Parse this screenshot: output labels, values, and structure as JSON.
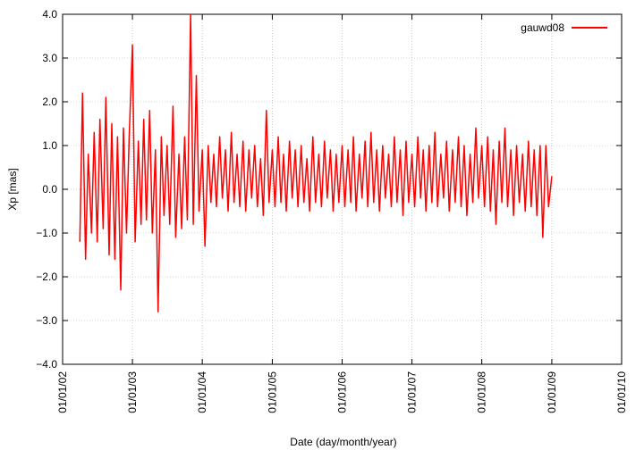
{
  "chart_data": {
    "type": "line",
    "xlabel": "Date (day/month/year)",
    "ylabel": "Xp [mas]",
    "x": [
      "2002-04-01",
      "2002-04-15",
      "2002-05-01",
      "2002-05-15",
      "2002-06-01",
      "2002-06-15",
      "2002-07-01",
      "2002-07-15",
      "2002-08-01",
      "2002-08-15",
      "2002-09-01",
      "2002-09-15",
      "2002-10-01",
      "2002-10-15",
      "2002-11-01",
      "2002-11-15",
      "2002-12-01",
      "2002-12-15",
      "2003-01-01",
      "2003-01-15",
      "2003-02-01",
      "2003-02-15",
      "2003-03-01",
      "2003-03-15",
      "2003-04-01",
      "2003-04-15",
      "2003-05-01",
      "2003-05-15",
      "2003-06-01",
      "2003-06-15",
      "2003-07-01",
      "2003-07-15",
      "2003-08-01",
      "2003-08-15",
      "2003-09-01",
      "2003-09-15",
      "2003-10-01",
      "2003-10-15",
      "2003-11-01",
      "2003-11-15",
      "2003-12-01",
      "2003-12-15",
      "2004-01-01",
      "2004-01-15",
      "2004-02-01",
      "2004-02-15",
      "2004-03-01",
      "2004-03-15",
      "2004-04-01",
      "2004-04-15",
      "2004-05-01",
      "2004-05-15",
      "2004-06-01",
      "2004-06-15",
      "2004-07-01",
      "2004-07-15",
      "2004-08-01",
      "2004-08-15",
      "2004-09-01",
      "2004-09-15",
      "2004-10-01",
      "2004-10-15",
      "2004-11-01",
      "2004-11-15",
      "2004-12-01",
      "2004-12-15",
      "2005-01-01",
      "2005-01-15",
      "2005-02-01",
      "2005-02-15",
      "2005-03-01",
      "2005-03-15",
      "2005-04-01",
      "2005-04-15",
      "2005-05-01",
      "2005-05-15",
      "2005-06-01",
      "2005-06-15",
      "2005-07-01",
      "2005-07-15",
      "2005-08-01",
      "2005-08-15",
      "2005-09-01",
      "2005-09-15",
      "2005-10-01",
      "2005-10-15",
      "2005-11-01",
      "2005-11-15",
      "2005-12-01",
      "2005-12-15",
      "2006-01-01",
      "2006-01-15",
      "2006-02-01",
      "2006-02-15",
      "2006-03-01",
      "2006-03-15",
      "2006-04-01",
      "2006-04-15",
      "2006-05-01",
      "2006-05-15",
      "2006-06-01",
      "2006-06-15",
      "2006-07-01",
      "2006-07-15",
      "2006-08-01",
      "2006-08-15",
      "2006-09-01",
      "2006-09-15",
      "2006-10-01",
      "2006-10-15",
      "2006-11-01",
      "2006-11-15",
      "2006-12-01",
      "2006-12-15",
      "2007-01-01",
      "2007-01-15",
      "2007-02-01",
      "2007-02-15",
      "2007-03-01",
      "2007-03-15",
      "2007-04-01",
      "2007-04-15",
      "2007-05-01",
      "2007-05-15",
      "2007-06-01",
      "2007-06-15",
      "2007-07-01",
      "2007-07-15",
      "2007-08-01",
      "2007-08-15",
      "2007-09-01",
      "2007-09-15",
      "2007-10-01",
      "2007-10-15",
      "2007-11-01",
      "2007-11-15",
      "2007-12-01",
      "2007-12-15",
      "2008-01-01",
      "2008-01-15",
      "2008-02-01",
      "2008-02-15",
      "2008-03-01",
      "2008-03-15",
      "2008-04-01",
      "2008-04-15",
      "2008-05-01",
      "2008-05-15",
      "2008-06-01",
      "2008-06-15",
      "2008-07-01",
      "2008-07-15",
      "2008-08-01",
      "2008-08-15",
      "2008-09-01",
      "2008-09-15",
      "2008-10-01",
      "2008-10-15",
      "2008-11-01",
      "2008-11-15",
      "2008-12-01",
      "2008-12-15",
      "2009-01-01"
    ],
    "series": [
      {
        "name": "gauwd08",
        "color": "#ff0000",
        "values": [
          -1.2,
          2.2,
          -1.6,
          0.8,
          -1.0,
          1.3,
          -1.2,
          1.6,
          -0.9,
          2.1,
          -1.5,
          1.5,
          -1.6,
          1.2,
          -2.3,
          1.4,
          -1.0,
          1.2,
          3.3,
          -1.2,
          1.1,
          -0.8,
          1.6,
          -0.7,
          1.8,
          -1.0,
          0.9,
          -2.8,
          1.2,
          -0.6,
          1.0,
          -0.8,
          1.9,
          -1.1,
          0.8,
          -0.9,
          1.2,
          -0.7,
          4.0,
          -0.8,
          2.6,
          -0.5,
          0.9,
          -1.3,
          1.0,
          -0.3,
          0.8,
          -0.4,
          1.2,
          -0.2,
          0.9,
          -0.5,
          1.3,
          -0.3,
          0.8,
          -0.4,
          1.1,
          -0.5,
          0.9,
          -0.2,
          1.0,
          -0.4,
          0.7,
          -0.6,
          1.8,
          -0.3,
          0.9,
          -0.4,
          1.2,
          -0.3,
          0.8,
          -0.5,
          1.1,
          -0.2,
          0.9,
          -0.4,
          1.0,
          -0.3,
          0.7,
          -0.5,
          1.2,
          -0.3,
          0.8,
          -0.4,
          1.1,
          -0.2,
          0.9,
          -0.5,
          0.8,
          -0.3,
          1.0,
          -0.4,
          0.9,
          -0.3,
          1.2,
          -0.5,
          0.8,
          -0.2,
          1.1,
          -0.4,
          1.3,
          -0.3,
          0.9,
          -0.5,
          1.0,
          -0.2,
          0.8,
          -0.4,
          1.2,
          -0.3,
          0.9,
          -0.6,
          1.1,
          -0.3,
          0.8,
          -0.4,
          1.2,
          -0.2,
          0.9,
          -0.5,
          1.0,
          -0.3,
          1.3,
          -0.4,
          0.8,
          -0.2,
          1.1,
          -0.5,
          0.9,
          -0.3,
          1.2,
          -0.4,
          1.0,
          -0.6,
          0.8,
          -0.3,
          1.4,
          -0.2,
          1.0,
          -0.4,
          1.2,
          -0.5,
          0.9,
          -0.8,
          1.1,
          -0.3,
          1.4,
          -0.4,
          0.9,
          -0.6,
          1.0,
          -0.3,
          0.8,
          -0.5,
          1.1,
          -0.4,
          0.9,
          -0.6,
          1.0,
          -1.1,
          1.0,
          -0.4,
          0.3
        ]
      }
    ],
    "xlim": [
      "2002-01-01",
      "2010-01-01"
    ],
    "xticks": [
      {
        "value": "2002-01-01",
        "label": "01/01/02"
      },
      {
        "value": "2003-01-01",
        "label": "01/01/03"
      },
      {
        "value": "2004-01-01",
        "label": "01/01/04"
      },
      {
        "value": "2005-01-01",
        "label": "01/01/05"
      },
      {
        "value": "2006-01-01",
        "label": "01/01/06"
      },
      {
        "value": "2007-01-01",
        "label": "01/01/07"
      },
      {
        "value": "2008-01-01",
        "label": "01/01/08"
      },
      {
        "value": "2009-01-01",
        "label": "01/01/09"
      },
      {
        "value": "2010-01-01",
        "label": "01/01/10"
      }
    ],
    "ylim": [
      -4,
      4
    ],
    "yticks": [
      {
        "value": -4,
        "label": "−4.0"
      },
      {
        "value": -3,
        "label": "−3.0"
      },
      {
        "value": -2,
        "label": "−2.0"
      },
      {
        "value": -1,
        "label": "−1.0"
      },
      {
        "value": 0,
        "label": "0.0"
      },
      {
        "value": 1,
        "label": "1.0"
      },
      {
        "value": 2,
        "label": "2.0"
      },
      {
        "value": 3,
        "label": "3.0"
      },
      {
        "value": 4,
        "label": "4.0"
      }
    ],
    "grid": true,
    "legend": "top-right"
  }
}
